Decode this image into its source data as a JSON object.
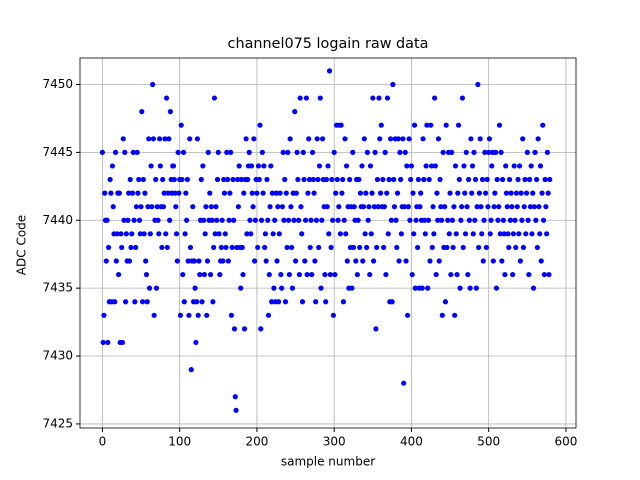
{
  "chart_data": {
    "type": "scatter",
    "title": "channel075 logain raw data",
    "x_label": "sample number",
    "y_label": "ADC Code",
    "color": "#0000ff",
    "grid": true,
    "xlim": [
      -29,
      613
    ],
    "ylim": [
      7424.7,
      7451.95
    ],
    "xticks": [
      0,
      100,
      200,
      300,
      400,
      500,
      600
    ],
    "yticks": [
      7425,
      7430,
      7435,
      7440,
      7445,
      7450
    ],
    "x": [
      0,
      1,
      2,
      3,
      4,
      5,
      6,
      7,
      8,
      9,
      10,
      11,
      12,
      13,
      14,
      15,
      16,
      17,
      18,
      19,
      20,
      21,
      22,
      23,
      24,
      25,
      26,
      27,
      28,
      29,
      30,
      31,
      32,
      33,
      34,
      35,
      36,
      37,
      38,
      39,
      40,
      41,
      42,
      43,
      44,
      45,
      46,
      47,
      48,
      49,
      50,
      51,
      52,
      53,
      54,
      55,
      56,
      57,
      58,
      59,
      60,
      61,
      62,
      63,
      64,
      65,
      66,
      67,
      68,
      69,
      70,
      71,
      72,
      73,
      74,
      75,
      76,
      77,
      78,
      79,
      80,
      81,
      82,
      83,
      84,
      85,
      86,
      87,
      88,
      89,
      90,
      91,
      92,
      93,
      94,
      95,
      96,
      97,
      98,
      99,
      100,
      101,
      102,
      103,
      104,
      105,
      106,
      107,
      108,
      109,
      110,
      111,
      112,
      113,
      114,
      115,
      116,
      117,
      118,
      119,
      120,
      121,
      122,
      123,
      124,
      125,
      126,
      127,
      128,
      129,
      130,
      131,
      132,
      133,
      134,
      135,
      136,
      137,
      138,
      139,
      140,
      141,
      142,
      143,
      144,
      145,
      146,
      147,
      148,
      149,
      150,
      151,
      152,
      153,
      154,
      155,
      156,
      157,
      158,
      159,
      160,
      161,
      162,
      163,
      164,
      165,
      166,
      167,
      168,
      169,
      170,
      171,
      172,
      173,
      174,
      175,
      176,
      177,
      178,
      179,
      180,
      181,
      182,
      183,
      184,
      185,
      186,
      187,
      188,
      189,
      190,
      191,
      192,
      193,
      194,
      195,
      196,
      197,
      198,
      199,
      200,
      201,
      202,
      203,
      204,
      205,
      206,
      207,
      208,
      209,
      210,
      211,
      212,
      213,
      214,
      215,
      216,
      217,
      218,
      219,
      220,
      221,
      222,
      223,
      224,
      225,
      226,
      227,
      228,
      229,
      230,
      231,
      232,
      233,
      234,
      235,
      236,
      237,
      238,
      239,
      240,
      241,
      242,
      243,
      244,
      245,
      246,
      247,
      248,
      249,
      250,
      251,
      252,
      253,
      254,
      255,
      256,
      257,
      258,
      259,
      260,
      261,
      262,
      263,
      264,
      265,
      266,
      267,
      268,
      269,
      270,
      271,
      272,
      273,
      274,
      275,
      276,
      277,
      278,
      279,
      280,
      281,
      282,
      283,
      284,
      285,
      286,
      287,
      288,
      289,
      290,
      291,
      292,
      293,
      294,
      295,
      296,
      297,
      298,
      299,
      300,
      301,
      302,
      303,
      304,
      305,
      306,
      307,
      308,
      309,
      310,
      311,
      312,
      313,
      314,
      315,
      316,
      317,
      318,
      319,
      320,
      321,
      322,
      323,
      324,
      325,
      326,
      327,
      328,
      329,
      330,
      331,
      332,
      333,
      334,
      335,
      336,
      337,
      338,
      339,
      340,
      341,
      342,
      343,
      344,
      345,
      346,
      347,
      348,
      349,
      350,
      351,
      352,
      353,
      354,
      355,
      356,
      357,
      358,
      359,
      360,
      361,
      362,
      363,
      364,
      365,
      366,
      367,
      368,
      369,
      370,
      371,
      372,
      373,
      374,
      375,
      376,
      377,
      378,
      379,
      380,
      381,
      382,
      383,
      384,
      385,
      386,
      387,
      388,
      389,
      390,
      391,
      392,
      393,
      394,
      395,
      396,
      397,
      398,
      399,
      400,
      401,
      402,
      403,
      404,
      405,
      406,
      407,
      408,
      409,
      410,
      411,
      412,
      413,
      414,
      415,
      416,
      417,
      418,
      419,
      420,
      421,
      422,
      423,
      424,
      425,
      426,
      427,
      428,
      429,
      430,
      431,
      432,
      433,
      434,
      435,
      436,
      437,
      438,
      439,
      440,
      441,
      442,
      443,
      444,
      445,
      446,
      447,
      448,
      449,
      450,
      451,
      452,
      453,
      454,
      455,
      456,
      457,
      458,
      459,
      460,
      461,
      462,
      463,
      464,
      465,
      466,
      467,
      468,
      469,
      470,
      471,
      472,
      473,
      474,
      475,
      476,
      477,
      478,
      479,
      480,
      481,
      482,
      483,
      484,
      485,
      486,
      487,
      488,
      489,
      490,
      491,
      492,
      493,
      494,
      495,
      496,
      497,
      498,
      499,
      500,
      501,
      502,
      503,
      504,
      505,
      506,
      507,
      508,
      509,
      510,
      511,
      512,
      513,
      514,
      515,
      516,
      517,
      518,
      519,
      520,
      521,
      522,
      523,
      524,
      525,
      526,
      527,
      528,
      529,
      530,
      531,
      532,
      533,
      534,
      535,
      536,
      537,
      538,
      539,
      540,
      541,
      542,
      543,
      544,
      545,
      546,
      547,
      548,
      549,
      550,
      551,
      552,
      553,
      554,
      555,
      556,
      557,
      558,
      559,
      560,
      561,
      562,
      563,
      564,
      565,
      566,
      567,
      568,
      569,
      570,
      571,
      572,
      573,
      574,
      575,
      576,
      577,
      578,
      579
    ],
    "values": [
      7445,
      7431,
      7433,
      7442,
      7440,
      7437,
      7440,
      7431,
      7438,
      7434,
      7443,
      7442,
      7434,
      7444,
      7441,
      7439,
      7434,
      7445,
      7437,
      7439,
      7442,
      7436,
      7442,
      7431,
      7439,
      7438,
      7431,
      7446,
      7440,
      7445,
      7434,
      7439,
      7437,
      7440,
      7442,
      7437,
      7443,
      7438,
      7439,
      7442,
      7445,
      7440,
      7434,
      7438,
      7441,
      7445,
      7442,
      7443,
      7440,
      7439,
      7441,
      7448,
      7434,
      7443,
      7439,
      7442,
      7437,
      7436,
      7434,
      7441,
      7446,
      7435,
      7439,
      7444,
      7441,
      7450,
      7446,
      7433,
      7440,
      7443,
      7435,
      7441,
      7440,
      7439,
      7446,
      7444,
      7441,
      7438,
      7443,
      7441,
      7442,
      7446,
      7439,
      7449,
      7438,
      7442,
      7446,
      7440,
      7448,
      7443,
      7442,
      7444,
      7444,
      7443,
      7442,
      7441,
      7439,
      7437,
      7445,
      7442,
      7443,
      7433,
      7447,
      7443,
      7436,
      7445,
      7434,
      7439,
      7442,
      7440,
      7443,
      7437,
      7433,
      7446,
      7438,
      7429,
      7437,
      7441,
      7434,
      7437,
      7435,
      7431,
      7434,
      7446,
      7433,
      7437,
      7436,
      7440,
      7443,
      7434,
      7444,
      7440,
      7436,
      7439,
      7441,
      7433,
      7437,
      7445,
      7440,
      7442,
      7436,
      7441,
      7440,
      7434,
      7438,
      7449,
      7439,
      7441,
      7440,
      7443,
      7445,
      7439,
      7436,
      7437,
      7438,
      7440,
      7437,
      7443,
      7442,
      7439,
      7438,
      7445,
      7443,
      7437,
      7440,
      7442,
      7445,
      7433,
      7438,
      7443,
      7440,
      7432,
      7427,
      7426,
      7438,
      7443,
      7441,
      7444,
      7438,
      7435,
      7443,
      7438,
      7436,
      7442,
      7432,
      7443,
      7446,
      7439,
      7443,
      7444,
      7445,
      7440,
      7439,
      7444,
      7442,
      7441,
      7446,
      7437,
      7440,
      7443,
      7442,
      7438,
      7444,
      7443,
      7447,
      7432,
      7440,
      7445,
      7442,
      7444,
      7438,
      7439,
      7437,
      7443,
      7440,
      7433,
      7436,
      7441,
      7444,
      7434,
      7442,
      7439,
      7435,
      7440,
      7434,
      7442,
      7437,
      7441,
      7434,
      7439,
      7442,
      7436,
      7435,
      7441,
      7445,
      7440,
      7443,
      7434,
      7442,
      7438,
      7445,
      7440,
      7436,
      7446,
      7441,
      7438,
      7435,
      7442,
      7440,
      7448,
      7437,
      7442,
      7445,
      7443,
      7440,
      7436,
      7449,
      7441,
      7439,
      7434,
      7445,
      7443,
      7437,
      7440,
      7449,
      7436,
      7442,
      7446,
      7443,
      7438,
      7440,
      7436,
      7445,
      7443,
      7442,
      7437,
      7434,
      7440,
      7446,
      7443,
      7438,
      7444,
      7449,
      7435,
      7440,
      7446,
      7443,
      7441,
      7436,
      7434,
      7443,
      7441,
      7444,
      7439,
      7451,
      7436,
      7438,
      7443,
      7440,
      7433,
      7445,
      7436,
      7442,
      7447,
      7443,
      7440,
      7441,
      7447,
      7439,
      7447,
      7442,
      7443,
      7434,
      7440,
      7446,
      7439,
      7444,
      7437,
      7441,
      7435,
      7443,
      7438,
      7441,
      7435,
      7445,
      7438,
      7441,
      7440,
      7437,
      7443,
      7436,
      7440,
      7443,
      7438,
      7442,
      7441,
      7444,
      7437,
      7441,
      7446,
      7439,
      7442,
      7438,
      7445,
      7440,
      7441,
      7436,
      7444,
      7439,
      7442,
      7449,
      7437,
      7441,
      7445,
      7432,
      7438,
      7443,
      7441,
      7449,
      7446,
      7442,
      7447,
      7441,
      7443,
      7438,
      7441,
      7445,
      7436,
      7442,
      7449,
      7439,
      7443,
      7434,
      7446,
      7440,
      7434,
      7450,
      7443,
      7441,
      7446,
      7440,
      7438,
      7442,
      7446,
      7437,
      7445,
      7443,
      7439,
      7441,
      7446,
      7428,
      7441,
      7445,
      7437,
      7444,
      7433,
      7441,
      7446,
      7440,
      7443,
      7444,
      7436,
      7442,
      7439,
      7447,
      7435,
      7440,
      7441,
      7438,
      7443,
      7435,
      7441,
      7442,
      7440,
      7435,
      7446,
      7443,
      7440,
      7439,
      7444,
      7447,
      7435,
      7440,
      7443,
      7437,
      7447,
      7444,
      7438,
      7441,
      7439,
      7449,
      7444,
      7436,
      7442,
      7440,
      7446,
      7437,
      7443,
      7441,
      7440,
      7433,
      7445,
      7438,
      7441,
      7434,
      7447,
      7438,
      7440,
      7445,
      7439,
      7442,
      7436,
      7445,
      7440,
      7438,
      7441,
      7433,
      7444,
      7439,
      7436,
      7442,
      7447,
      7443,
      7435,
      7440,
      7441,
      7449,
      7438,
      7444,
      7442,
      7439,
      7445,
      7441,
      7436,
      7443,
      7440,
      7435,
      7446,
      7442,
      7444,
      7439,
      7445,
      7440,
      7443,
      7435,
      7441,
      7450,
      7438,
      7442,
      7446,
      7441,
      7439,
      7443,
      7437,
      7440,
      7445,
      7442,
      7438,
      7443,
      7441,
      7445,
      7446,
      7439,
      7440,
      7444,
      7445,
      7437,
      7441,
      7442,
      7445,
      7435,
      7443,
      7440,
      7441,
      7447,
      7439,
      7445,
      7437,
      7443,
      7440,
      7439,
      7436,
      7444,
      7442,
      7441,
      7439,
      7438,
      7443,
      7440,
      7442,
      7441,
      7436,
      7439,
      7444,
      7440,
      7438,
      7442,
      7441,
      7443,
      7439,
      7444,
      7437,
      7442,
      7440,
      7446,
      7438,
      7441,
      7443,
      7439,
      7442,
      7445,
      7440,
      7436,
      7443,
      7441,
      7444,
      7439,
      7442,
      7435,
      7441,
      7445,
      7440,
      7443,
      7438,
      7446,
      7441,
      7439,
      7444,
      7437,
      7442,
      7447,
      7440,
      7436,
      7443,
      7441,
      7439,
      7445,
      7442,
      7436,
      7443
    ]
  }
}
